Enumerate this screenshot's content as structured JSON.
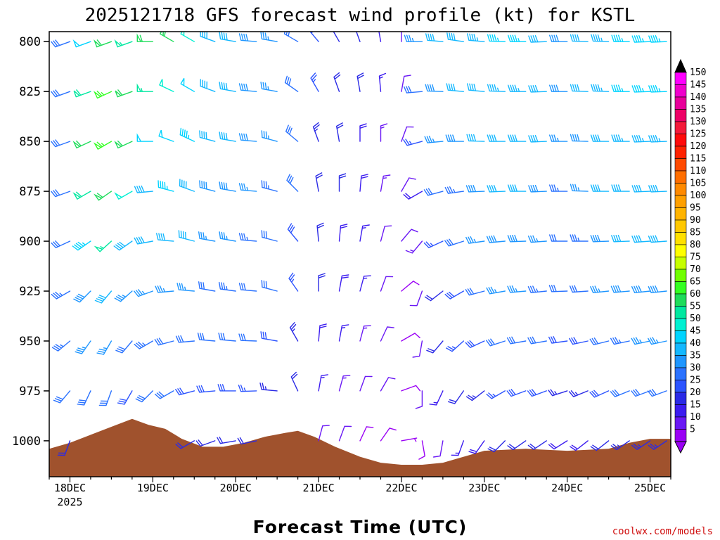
{
  "chart_data": {
    "type": "wind-barb-profile",
    "title": "2025121718 GFS forecast wind profile (kt) for KSTL",
    "xlabel": "Forecast Time (UTC)",
    "credit": "coolwx.com/models",
    "y_ticks": [
      "800",
      "825",
      "850",
      "875",
      "900",
      "925",
      "950",
      "975",
      "1000"
    ],
    "y_levels": [
      800,
      825,
      850,
      875,
      900,
      925,
      950,
      975,
      1000
    ],
    "ylim": [
      795,
      1018
    ],
    "x_ticks": [
      "18DEC",
      "19DEC",
      "20DEC",
      "21DEC",
      "22DEC",
      "23DEC",
      "24DEC",
      "25DEC"
    ],
    "x_tick_sub": "2025",
    "x_range_days": [
      -0.25,
      7.25
    ],
    "colorbar_values": [
      150,
      145,
      140,
      135,
      130,
      125,
      120,
      115,
      110,
      105,
      100,
      95,
      90,
      85,
      80,
      75,
      70,
      65,
      60,
      55,
      50,
      45,
      40,
      35,
      30,
      25,
      20,
      15,
      10,
      5
    ],
    "colorbar_colors": [
      "#ff00ff",
      "#f000cc",
      "#e8009a",
      "#ee0066",
      "#f41a3a",
      "#ff0a0a",
      "#ff2200",
      "#ff4a00",
      "#ff6e00",
      "#ff8a00",
      "#ffa000",
      "#ffb400",
      "#ffc800",
      "#ffe000",
      "#ffff00",
      "#c6ff00",
      "#70ff00",
      "#33ff22",
      "#1edc5a",
      "#00e8a0",
      "#00f0d2",
      "#00d4ff",
      "#14b8ff",
      "#1e96ff",
      "#2a72ff",
      "#2c54ff",
      "#2a2ae6",
      "#3c1cf0",
      "#6a18f5",
      "#9a00f5"
    ],
    "terrain_color": "#a0522d",
    "surface_pressure_hpa": [
      {
        "t": -0.25,
        "p": 1004
      },
      {
        "t": 0.0,
        "p": 1001
      },
      {
        "t": 0.25,
        "p": 997
      },
      {
        "t": 0.5,
        "p": 993
      },
      {
        "t": 0.75,
        "p": 989
      },
      {
        "t": 0.95,
        "p": 992
      },
      {
        "t": 1.15,
        "p": 994
      },
      {
        "t": 1.35,
        "p": 999
      },
      {
        "t": 1.6,
        "p": 1003
      },
      {
        "t": 1.85,
        "p": 1003
      },
      {
        "t": 2.1,
        "p": 1001
      },
      {
        "t": 2.35,
        "p": 998
      },
      {
        "t": 2.6,
        "p": 996
      },
      {
        "t": 2.75,
        "p": 995
      },
      {
        "t": 2.95,
        "p": 998
      },
      {
        "t": 3.2,
        "p": 1003
      },
      {
        "t": 3.5,
        "p": 1008
      },
      {
        "t": 3.75,
        "p": 1011
      },
      {
        "t": 4.0,
        "p": 1012
      },
      {
        "t": 4.25,
        "p": 1012
      },
      {
        "t": 4.5,
        "p": 1011
      },
      {
        "t": 4.75,
        "p": 1008
      },
      {
        "t": 5.0,
        "p": 1005
      },
      {
        "t": 5.5,
        "p": 1004
      },
      {
        "t": 6.0,
        "p": 1005
      },
      {
        "t": 6.5,
        "p": 1004
      },
      {
        "t": 6.75,
        "p": 1001
      },
      {
        "t": 7.0,
        "p": 999
      },
      {
        "t": 7.25,
        "p": 999
      }
    ],
    "wind_profile": [
      {
        "t": 0.0,
        "speeds": [
          32,
          32,
          32,
          32,
          32,
          33,
          33,
          30,
          22
        ],
        "dirs": [
          250,
          250,
          250,
          250,
          245,
          240,
          230,
          220,
          200
        ]
      },
      {
        "t": 0.25,
        "speeds": [
          48,
          58,
          60,
          58,
          45,
          38,
          35,
          30,
          22
        ],
        "dirs": [
          250,
          250,
          245,
          240,
          235,
          225,
          215,
          205,
          195
        ]
      },
      {
        "t": 0.5,
        "speeds": [
          60,
          65,
          65,
          62,
          55,
          42,
          35,
          30,
          20
        ],
        "dirs": [
          250,
          245,
          240,
          235,
          228,
          220,
          210,
          200,
          190
        ]
      },
      {
        "t": 0.75,
        "speeds": [
          55,
          62,
          62,
          50,
          42,
          35,
          32,
          28,
          18
        ],
        "dirs": [
          250,
          250,
          245,
          240,
          235,
          228,
          220,
          210,
          200
        ]
      },
      {
        "t": 1.0,
        "speeds": [
          62,
          55,
          48,
          42,
          40,
          35,
          33,
          30,
          20
        ],
        "dirs": [
          270,
          270,
          270,
          265,
          260,
          250,
          240,
          225,
          210
        ]
      },
      {
        "t": 1.25,
        "speeds": [
          60,
          52,
          48,
          45,
          40,
          35,
          32,
          30,
          22
        ],
        "dirs": [
          300,
          295,
          290,
          285,
          275,
          265,
          255,
          240,
          220
        ]
      },
      {
        "t": 1.5,
        "speeds": [
          50,
          48,
          45,
          42,
          40,
          35,
          30,
          28,
          22
        ],
        "dirs": [
          300,
          300,
          295,
          290,
          285,
          275,
          265,
          255,
          240
        ]
      },
      {
        "t": 1.75,
        "speeds": [
          42,
          42,
          40,
          38,
          35,
          32,
          30,
          28,
          22
        ],
        "dirs": [
          290,
          290,
          285,
          285,
          280,
          280,
          275,
          265,
          250
        ]
      },
      {
        "t": 2.0,
        "speeds": [
          40,
          40,
          40,
          38,
          36,
          34,
          32,
          28,
          22
        ],
        "dirs": [
          280,
          280,
          280,
          280,
          280,
          278,
          275,
          270,
          260
        ]
      },
      {
        "t": 2.25,
        "speeds": [
          38,
          38,
          38,
          36,
          34,
          32,
          30,
          26,
          20
        ],
        "dirs": [
          275,
          275,
          275,
          275,
          275,
          275,
          272,
          268,
          258
        ]
      },
      {
        "t": 2.5,
        "speeds": [
          36,
          36,
          36,
          34,
          32,
          30,
          28,
          24,
          18
        ],
        "dirs": [
          280,
          280,
          285,
          285,
          285,
          285,
          280,
          275,
          262
        ]
      },
      {
        "t": 2.75,
        "speeds": [
          32,
          32,
          32,
          30,
          28,
          26,
          24,
          20,
          14
        ],
        "dirs": [
          300,
          305,
          310,
          315,
          320,
          325,
          330,
          335,
          340
        ]
      },
      {
        "t": 3.0,
        "speeds": [
          28,
          26,
          24,
          22,
          20,
          20,
          18,
          16,
          12
        ],
        "dirs": [
          320,
          330,
          340,
          350,
          355,
          0,
          5,
          10,
          15
        ]
      },
      {
        "t": 3.25,
        "speeds": [
          24,
          22,
          22,
          20,
          18,
          18,
          16,
          14,
          10
        ],
        "dirs": [
          330,
          340,
          350,
          0,
          5,
          10,
          10,
          15,
          20
        ]
      },
      {
        "t": 3.5,
        "speeds": [
          20,
          20,
          18,
          18,
          16,
          16,
          14,
          12,
          8
        ],
        "dirs": [
          340,
          350,
          0,
          5,
          10,
          15,
          15,
          20,
          25
        ]
      },
      {
        "t": 3.75,
        "speeds": [
          16,
          15,
          14,
          14,
          12,
          12,
          10,
          10,
          8
        ],
        "dirs": [
          350,
          355,
          0,
          10,
          15,
          20,
          25,
          30,
          35
        ]
      },
      {
        "t": 4.0,
        "speeds": [
          12,
          12,
          10,
          10,
          10,
          8,
          8,
          8,
          6
        ],
        "dirs": [
          0,
          10,
          20,
          30,
          40,
          50,
          60,
          70,
          80
        ]
      },
      {
        "t": 4.25,
        "speeds": [
          35,
          32,
          25,
          18,
          14,
          12,
          10,
          10,
          8
        ],
        "dirs": [
          270,
          265,
          255,
          240,
          220,
          200,
          190,
          180,
          170
        ]
      },
      {
        "t": 4.5,
        "speeds": [
          40,
          38,
          35,
          30,
          26,
          22,
          20,
          16,
          12
        ],
        "dirs": [
          275,
          272,
          265,
          255,
          245,
          232,
          220,
          205,
          190
        ]
      },
      {
        "t": 4.75,
        "speeds": [
          42,
          40,
          38,
          34,
          30,
          28,
          25,
          20,
          15
        ],
        "dirs": [
          278,
          275,
          270,
          262,
          252,
          240,
          228,
          215,
          200
        ]
      },
      {
        "t": 5.0,
        "speeds": [
          44,
          42,
          40,
          38,
          35,
          32,
          28,
          24,
          18
        ],
        "dirs": [
          275,
          275,
          272,
          268,
          262,
          255,
          245,
          232,
          215
        ]
      },
      {
        "t": 5.25,
        "speeds": [
          45,
          44,
          42,
          40,
          38,
          35,
          30,
          26,
          20
        ],
        "dirs": [
          272,
          272,
          270,
          268,
          265,
          260,
          252,
          240,
          225
        ]
      },
      {
        "t": 5.5,
        "speeds": [
          45,
          44,
          42,
          40,
          38,
          36,
          32,
          28,
          20
        ],
        "dirs": [
          270,
          270,
          270,
          270,
          268,
          265,
          260,
          250,
          235
        ]
      },
      {
        "t": 5.75,
        "speeds": [
          42,
          42,
          40,
          38,
          36,
          34,
          32,
          28,
          20
        ],
        "dirs": [
          268,
          268,
          268,
          268,
          266,
          264,
          260,
          250,
          236
        ]
      },
      {
        "t": 6.0,
        "speeds": [
          38,
          38,
          36,
          34,
          32,
          30,
          28,
          24,
          18
        ],
        "dirs": [
          270,
          270,
          270,
          270,
          270,
          268,
          262,
          252,
          238
        ]
      },
      {
        "t": 6.25,
        "speeds": [
          40,
          40,
          38,
          36,
          34,
          32,
          28,
          24,
          18
        ],
        "dirs": [
          272,
          272,
          272,
          272,
          270,
          266,
          258,
          248,
          232
        ]
      },
      {
        "t": 6.5,
        "speeds": [
          44,
          44,
          42,
          40,
          38,
          35,
          32,
          28,
          22
        ],
        "dirs": [
          272,
          272,
          270,
          270,
          268,
          264,
          256,
          246,
          232
        ]
      },
      {
        "t": 6.75,
        "speeds": [
          46,
          46,
          44,
          42,
          40,
          38,
          34,
          30,
          24
        ],
        "dirs": [
          270,
          270,
          270,
          270,
          268,
          265,
          258,
          248,
          235
        ]
      },
      {
        "t": 7.0,
        "speeds": [
          46,
          46,
          44,
          42,
          40,
          38,
          35,
          30,
          24
        ],
        "dirs": [
          268,
          268,
          268,
          268,
          266,
          264,
          258,
          250,
          236
        ]
      },
      {
        "t": 7.2,
        "speeds": [
          46,
          46,
          44,
          42,
          40,
          38,
          35,
          30,
          24
        ],
        "dirs": [
          268,
          268,
          268,
          268,
          266,
          264,
          258,
          250,
          236
        ]
      }
    ]
  }
}
